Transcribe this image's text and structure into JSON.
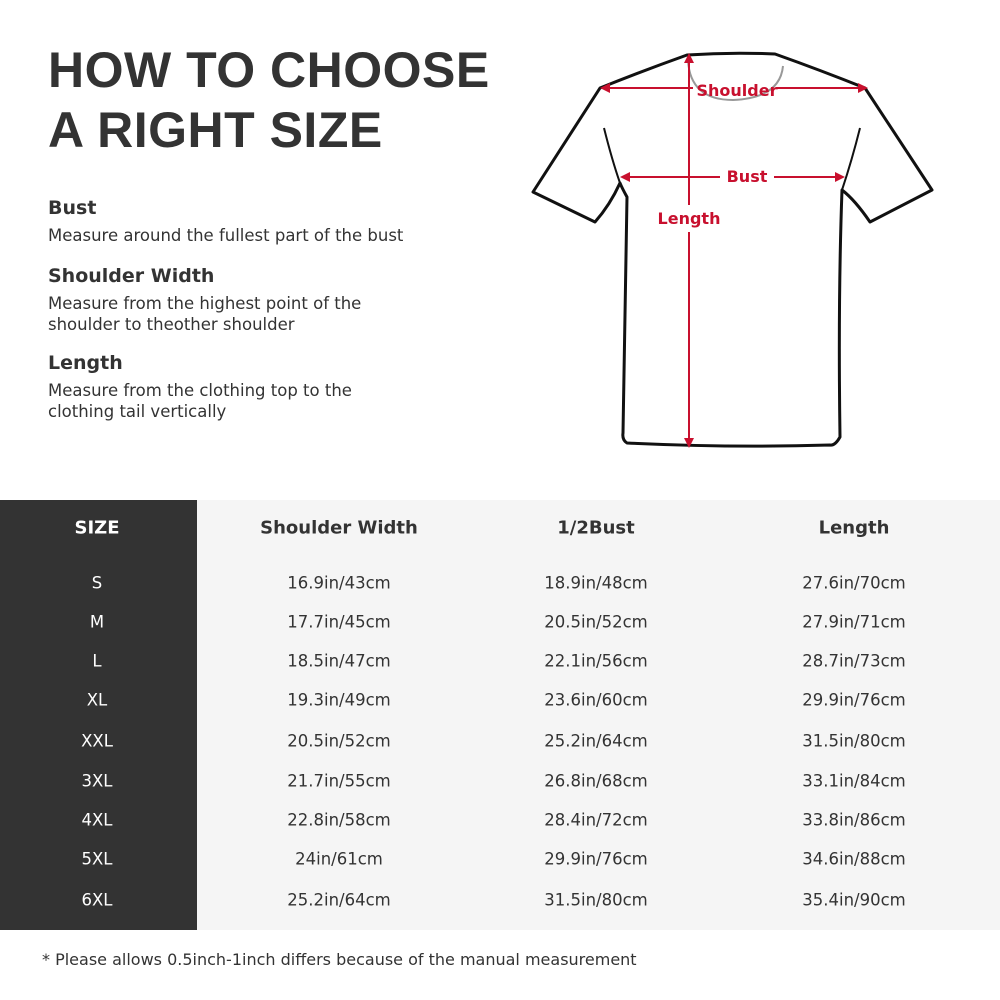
{
  "title_lines": [
    "HOW TO CHOOSE",
    "A RIGHT SIZE"
  ],
  "guide": [
    {
      "term": "Bust",
      "desc": "Measure around the fullest part of the bust"
    },
    {
      "term": "Shoulder Width",
      "desc": "Measure from the highest point of the shoulder to theother shoulder"
    },
    {
      "term": "Length",
      "desc": "Measure from the clothing top to the clothing tail vertically"
    }
  ],
  "diagram": {
    "labels": {
      "shoulder": "Shoulder",
      "bust": "Bust",
      "length": "Length"
    },
    "arrow_color": "#c8102e"
  },
  "table": {
    "headers": [
      "SIZE",
      "Shoulder Width",
      "1/2Bust",
      "Length"
    ],
    "rows": [
      [
        "S",
        "16.9in/43cm",
        "18.9in/48cm",
        "27.6in/70cm"
      ],
      [
        "M",
        "17.7in/45cm",
        "20.5in/52cm",
        "27.9in/71cm"
      ],
      [
        "L",
        "18.5in/47cm",
        "22.1in/56cm",
        "28.7in/73cm"
      ],
      [
        "XL",
        "19.3in/49cm",
        "23.6in/60cm",
        "29.9in/76cm"
      ],
      [
        "XXL",
        "20.5in/52cm",
        "25.2in/64cm",
        "31.5in/80cm"
      ],
      [
        "3XL",
        "21.7in/55cm",
        "26.8in/68cm",
        "33.1in/84cm"
      ],
      [
        "4XL",
        "22.8in/58cm",
        "28.4in/72cm",
        "33.8in/86cm"
      ],
      [
        "5XL",
        "24in/61cm",
        "29.9in/76cm",
        "34.6in/88cm"
      ],
      [
        "6XL",
        "25.2in/64cm",
        "31.5in/80cm",
        "35.4in/90cm"
      ]
    ]
  },
  "footnote": "* Please allows 0.5inch-1inch differs because of the  manual measurement"
}
